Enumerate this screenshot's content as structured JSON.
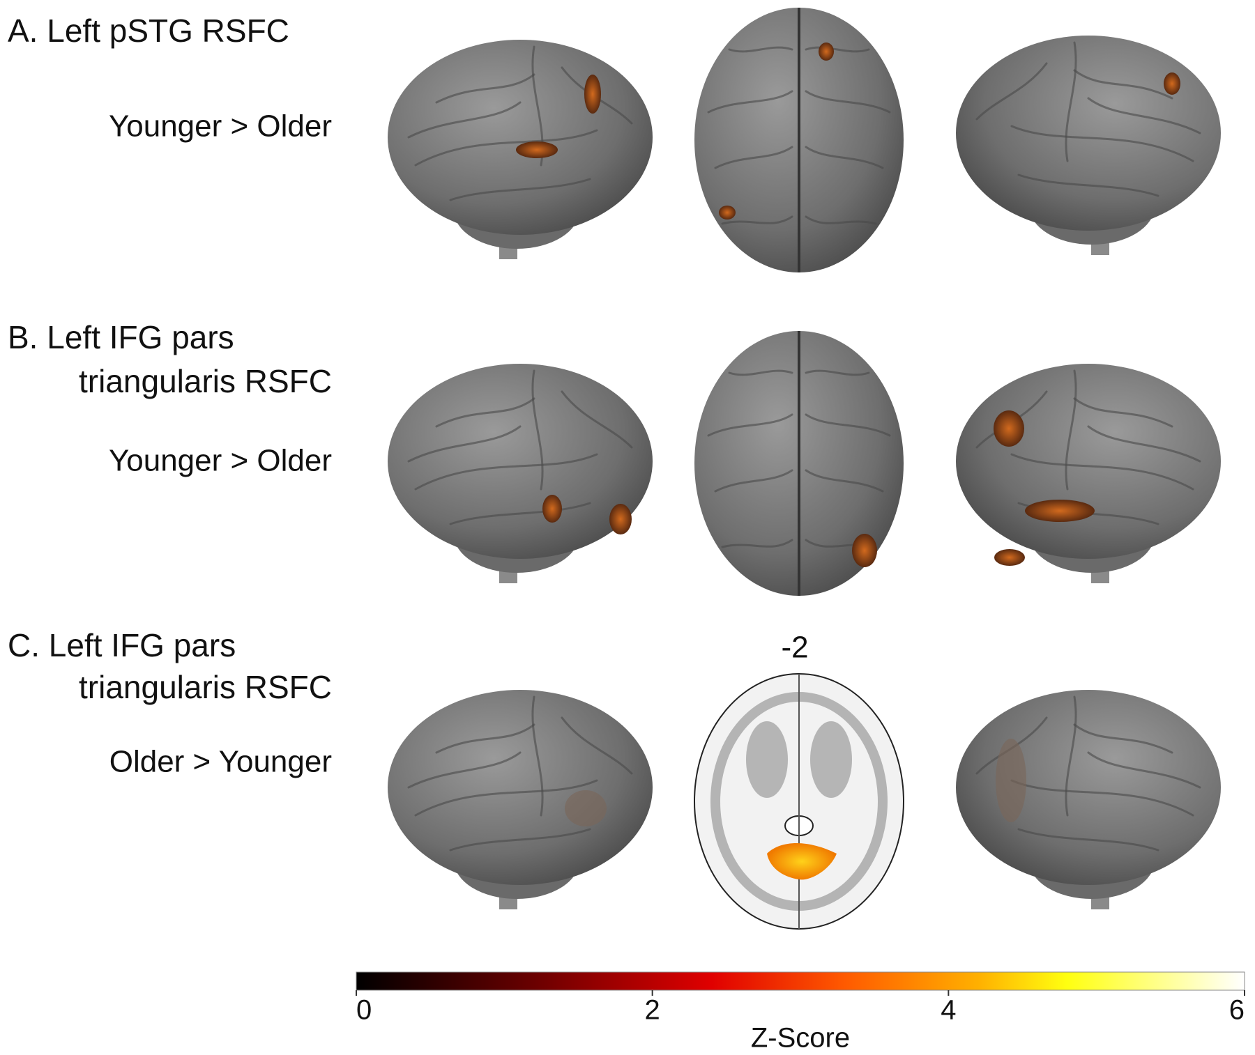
{
  "panels": [
    {
      "title_lines": [
        "A. Left pSTG RSFC"
      ],
      "contrast": "Younger > Older"
    },
    {
      "title_lines": [
        "B. Left IFG pars",
        "triangularis RSFC"
      ],
      "contrast": "Younger > Older"
    },
    {
      "title_lines": [
        "C. Left IFG pars",
        "triangularis RSFC"
      ],
      "contrast": "Older > Younger",
      "slice_label": "-2"
    }
  ],
  "colorbar": {
    "label": "Z-Score",
    "lim": [
      0,
      6
    ],
    "ticks": [
      0,
      2,
      4,
      6
    ]
  }
}
